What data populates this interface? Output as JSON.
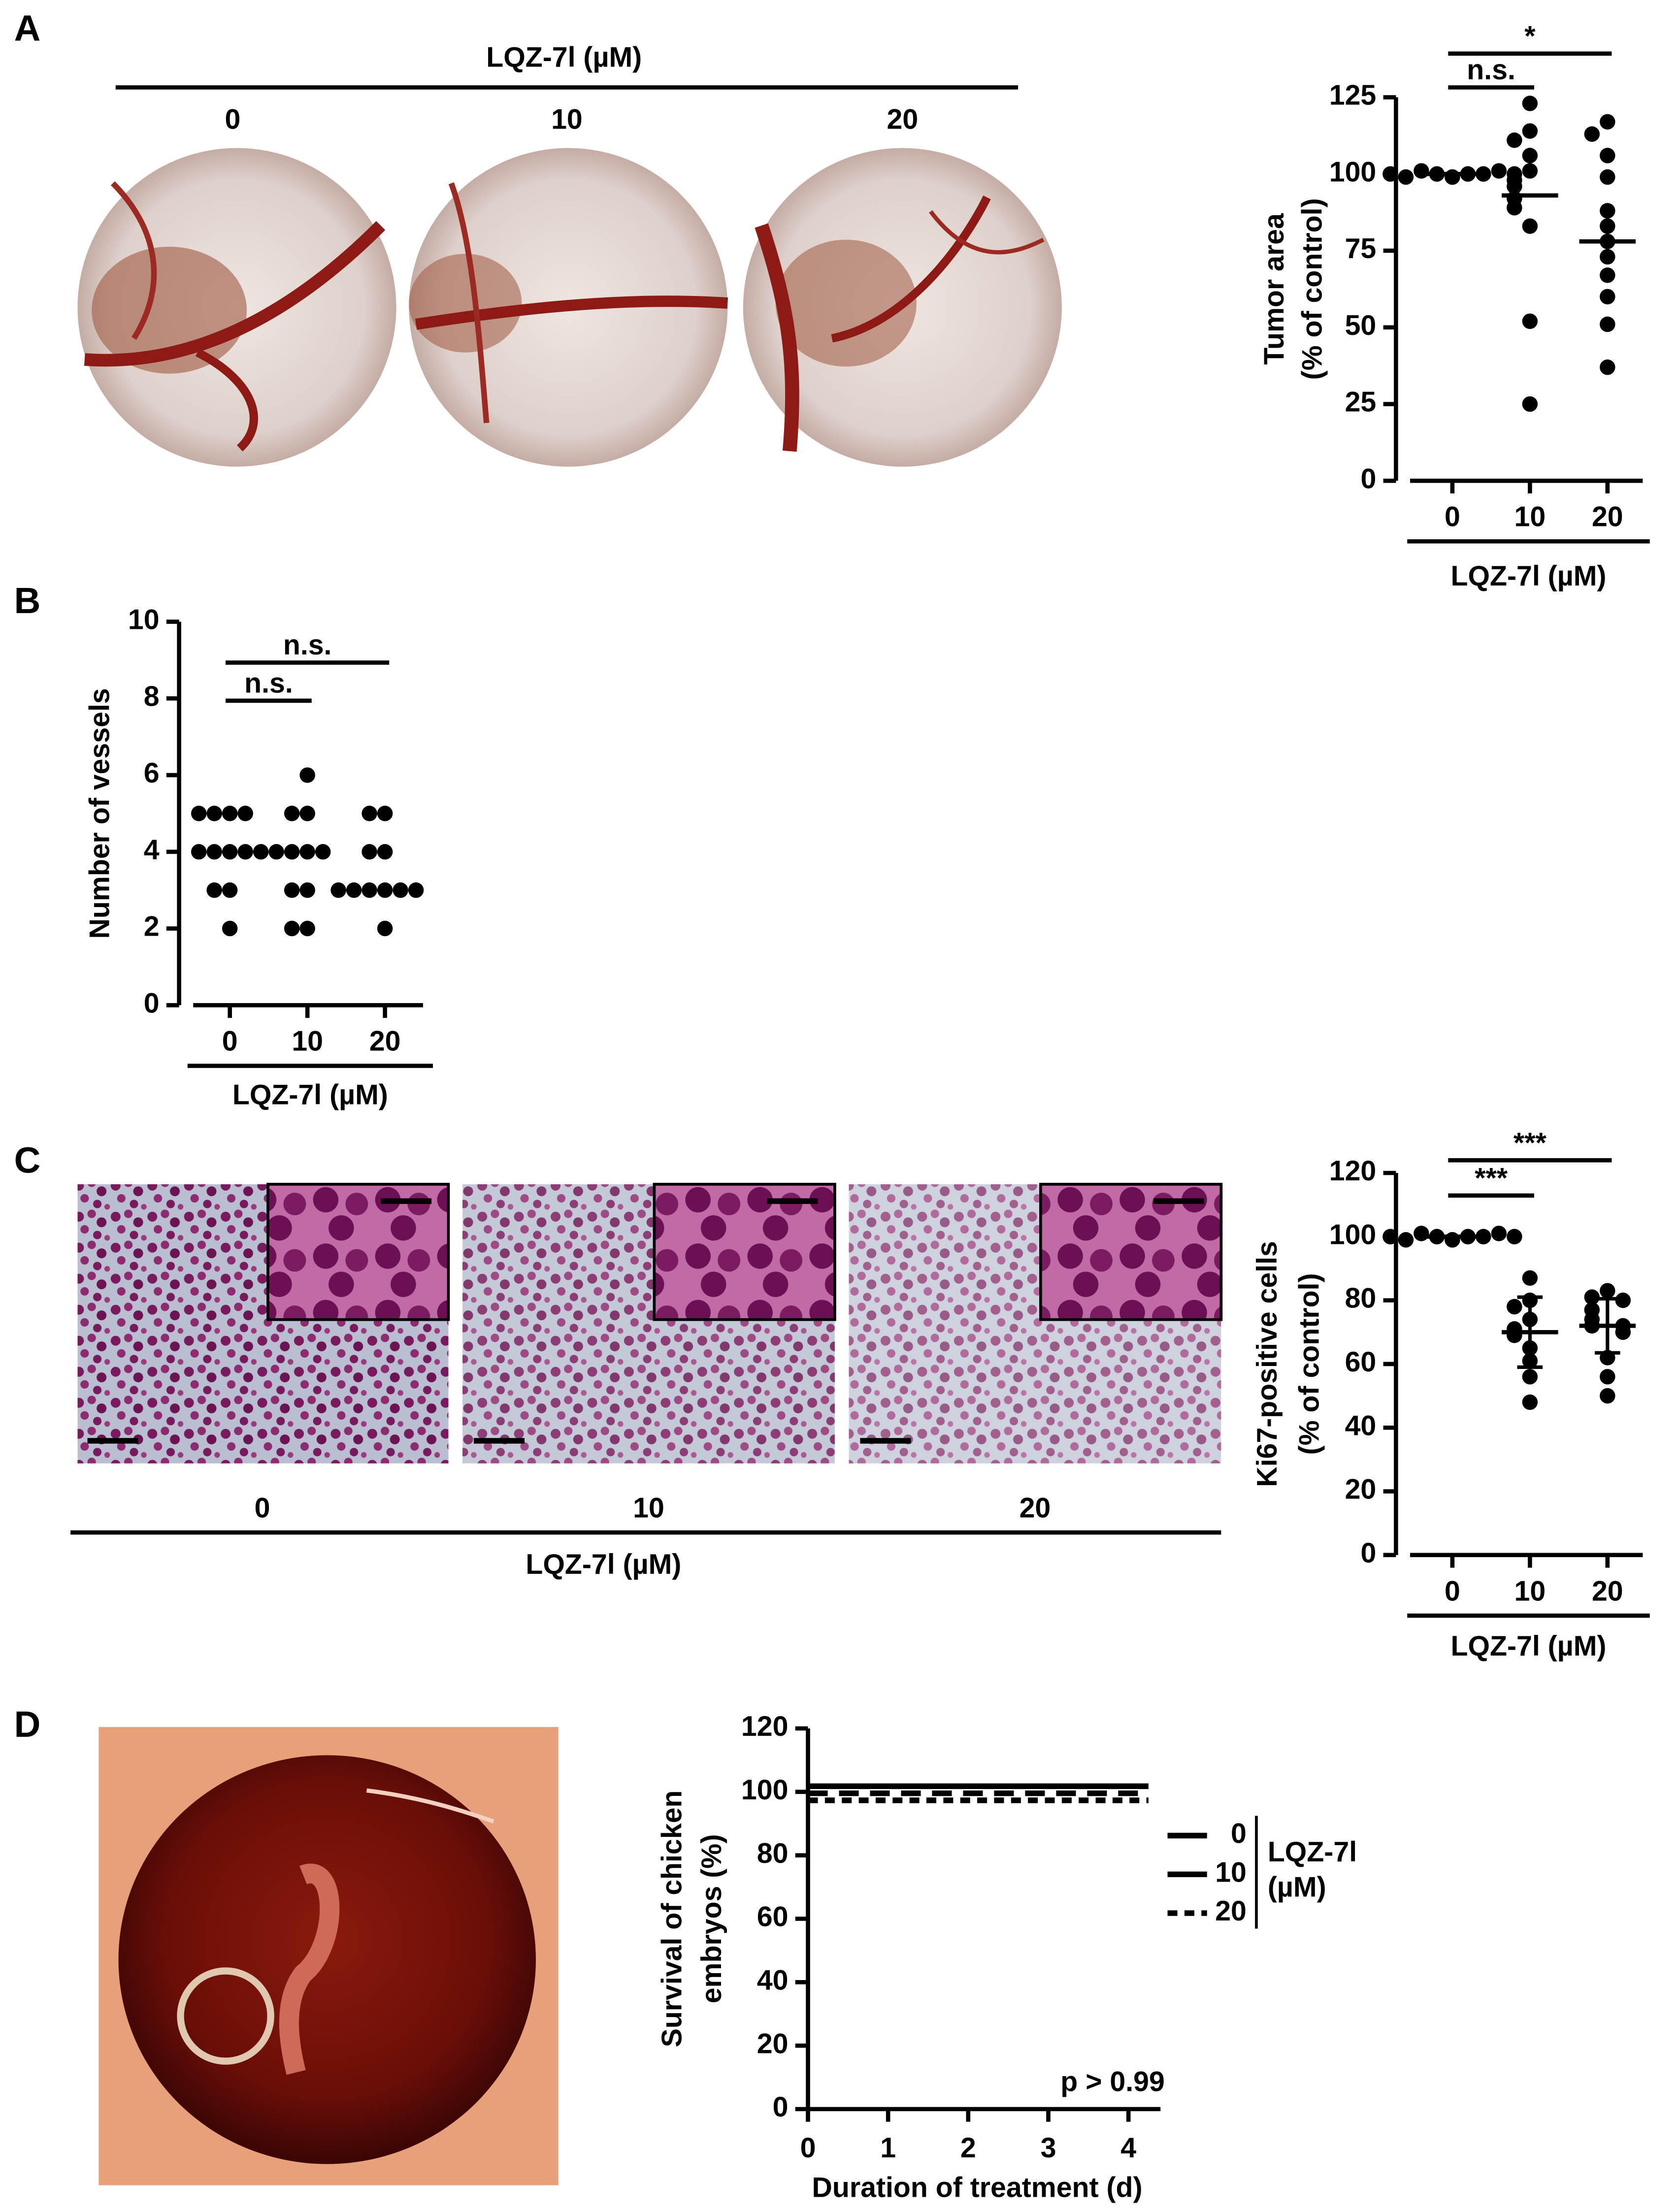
{
  "panel_labels": [
    "A",
    "B",
    "C",
    "D"
  ],
  "image_panels": [
    {
      "title": "LQZ-7l (µM)",
      "labels": [
        "0",
        "10",
        "20"
      ]
    },
    {
      "title": "LQZ-7l (µM)",
      "labels": [
        "0",
        "10",
        "20"
      ]
    }
  ],
  "chart_data": [
    {
      "type": "strip",
      "categories": [
        "0",
        "10",
        "20"
      ],
      "xlabel": "LQZ-7l (µM)",
      "ylabel": [
        "Tumor area",
        "(% of control)"
      ],
      "ylim": [
        0,
        125
      ],
      "yticks": [
        0,
        25,
        50,
        75,
        100,
        125
      ],
      "color": "#000000",
      "values": [
        [
          99,
          100,
          100,
          101,
          100,
          99,
          101,
          100,
          100,
          99
        ],
        [
          123,
          114,
          111,
          106,
          101,
          98,
          96,
          92,
          89,
          83,
          52,
          25
        ],
        [
          117,
          113,
          106,
          99,
          88,
          83,
          78,
          73,
          67,
          60,
          51,
          37
        ]
      ],
      "center": [
        100,
        93,
        78
      ],
      "significance": [
        {
          "groups": [
            0,
            1
          ],
          "label": "n.s."
        },
        {
          "groups": [
            0,
            2
          ],
          "label": "*"
        }
      ]
    },
    {
      "type": "strip",
      "categories": [
        "0",
        "10",
        "20"
      ],
      "xlabel": "LQZ-7l (µM)",
      "ylabel": "Number of vessels",
      "ylim": [
        0,
        10
      ],
      "yticks": [
        0,
        2,
        4,
        6,
        8,
        10
      ],
      "color": "#000000",
      "values": [
        [
          5,
          5,
          5,
          5,
          4,
          4,
          4,
          4,
          4,
          3,
          3,
          2
        ],
        [
          6,
          5,
          5,
          4,
          4,
          4,
          4,
          3,
          3,
          2,
          2
        ],
        [
          5,
          5,
          4,
          4,
          3,
          3,
          3,
          3,
          3,
          3,
          2
        ]
      ],
      "significance": [
        {
          "groups": [
            0,
            1
          ],
          "label": "n.s."
        },
        {
          "groups": [
            0,
            2
          ],
          "label": "n.s."
        }
      ]
    },
    {
      "type": "strip",
      "categories": [
        "0",
        "10",
        "20"
      ],
      "xlabel": "LQZ-7l (µM)",
      "ylabel": [
        "Ki67-positive cells",
        "(% of control)"
      ],
      "ylim": [
        0,
        120
      ],
      "yticks": [
        0,
        20,
        40,
        60,
        80,
        100,
        120
      ],
      "color": "#000000",
      "values": [
        [
          99,
          100,
          100,
          101,
          100,
          99,
          101,
          100,
          100,
          99
        ],
        [
          87,
          80,
          78,
          74,
          71,
          69,
          65,
          61,
          56,
          48
        ],
        [
          83,
          81,
          80,
          77,
          74,
          72,
          72,
          70,
          62,
          56,
          50
        ]
      ],
      "center": [
        100,
        70,
        72
      ],
      "sd": [
        0,
        11,
        8.5
      ],
      "significance": [
        {
          "groups": [
            0,
            1
          ],
          "label": "***"
        },
        {
          "groups": [
            0,
            2
          ],
          "label": "***"
        }
      ]
    },
    {
      "type": "line",
      "xlabel": "Duration of treatment (d)",
      "ylabel": [
        "Survival of chicken",
        "embryos (%)"
      ],
      "xlim": [
        0,
        4.4
      ],
      "xticks": [
        0,
        1,
        2,
        3,
        4
      ],
      "ylim": [
        0,
        120
      ],
      "yticks": [
        0,
        20,
        40,
        60,
        80,
        100,
        120
      ],
      "x": [
        0,
        4.25
      ],
      "series": [
        {
          "name": "0",
          "color": "#000000",
          "style": "solid",
          "values": [
            100,
            100
          ]
        },
        {
          "name": "10",
          "color": "#000000",
          "style": "long-dash",
          "values": [
            100,
            100
          ]
        },
        {
          "name": "20",
          "color": "#000000",
          "style": "dash",
          "values": [
            100,
            100
          ]
        }
      ],
      "legend_title": [
        "LQZ-7l",
        "(µM)"
      ],
      "legend": "right",
      "annotation": "p > 0.99"
    }
  ]
}
